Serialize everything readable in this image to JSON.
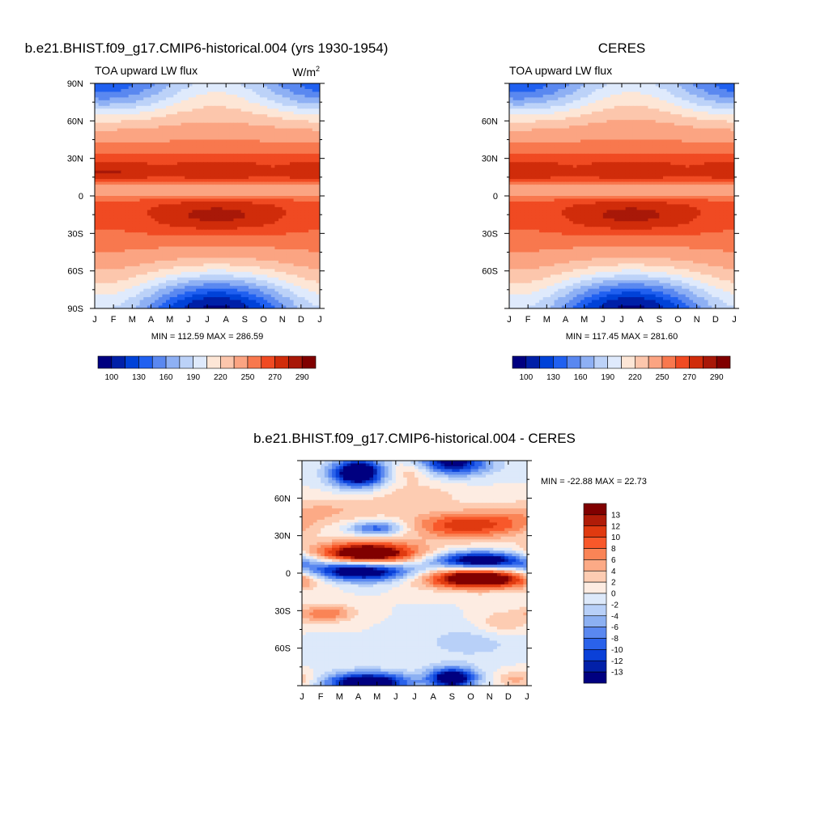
{
  "panels": [
    {
      "title": "b.e21.BHIST.f09_g17.CMIP6-historical.004 (yrs 1930-1954)",
      "left_label": "TOA upward LW flux",
      "right_label": "W/m",
      "right_label_sup": "2",
      "stats": "MIN = 112.59 MAX = 286.59"
    },
    {
      "title": "CERES",
      "left_label": "TOA upward LW flux",
      "right_label": "",
      "stats": "MIN = 117.45 MAX = 281.60"
    },
    {
      "title": "b.e21.BHIST.f09_g17.CMIP6-historical.004 - CERES",
      "stats": "MIN = -22.88 MAX =  22.73"
    }
  ],
  "abs_colorbar": {
    "colors": [
      "#000080",
      "#0020a8",
      "#0042d8",
      "#2060f0",
      "#5a88f0",
      "#8eb0f4",
      "#bcd2f8",
      "#dfeafc",
      "#fde6d6",
      "#fcc6ac",
      "#fba482",
      "#f8784e",
      "#f04a22",
      "#d02c0a",
      "#a81808",
      "#800000"
    ],
    "labels": [
      "100",
      "130",
      "160",
      "190",
      "220",
      "250",
      "270",
      "290"
    ]
  },
  "diff_colorbar": {
    "colors": [
      "#800000",
      "#b01c08",
      "#e03a10",
      "#f8582a",
      "#fa8456",
      "#fcaa86",
      "#fdccb2",
      "#fdece2",
      "#dde9fa",
      "#b8d0f8",
      "#8cb0f2",
      "#5a88f0",
      "#2a62ea",
      "#0a40d8",
      "#0220a8",
      "#000080"
    ],
    "labels": [
      "13",
      "12",
      "10",
      "8",
      "6",
      "4",
      "2",
      "0",
      "-2",
      "-4",
      "-6",
      "-8",
      "-10",
      "-12",
      "-13"
    ]
  },
  "chart_data": [
    {
      "type": "heatmap",
      "title": "b.e21.BHIST.f09_g17.CMIP6-historical.004 (yrs 1930-1954)",
      "subtitle_left": "TOA upward LW flux",
      "units": "W/m2",
      "x": [
        "J",
        "F",
        "M",
        "A",
        "M",
        "J",
        "J",
        "A",
        "S",
        "O",
        "N",
        "D",
        "J"
      ],
      "y_ticks": [
        "90N",
        "60N",
        "30N",
        "0",
        "30S",
        "60S",
        "90S"
      ],
      "ylim": [
        -90,
        90
      ],
      "min": 112.59,
      "max": 286.59,
      "levels": [
        100,
        115,
        130,
        145,
        160,
        175,
        190,
        205,
        220,
        235,
        250,
        260,
        270,
        280,
        290
      ]
    },
    {
      "type": "heatmap",
      "title": "CERES",
      "subtitle_left": "TOA upward LW flux",
      "x": [
        "J",
        "F",
        "M",
        "A",
        "M",
        "J",
        "J",
        "A",
        "S",
        "O",
        "N",
        "D",
        "J"
      ],
      "y_ticks": [
        "60N",
        "30N",
        "0",
        "30S",
        "60S"
      ],
      "ylim": [
        -90,
        90
      ],
      "min": 117.45,
      "max": 281.6,
      "levels": [
        100,
        115,
        130,
        145,
        160,
        175,
        190,
        205,
        220,
        235,
        250,
        260,
        270,
        280,
        290
      ]
    },
    {
      "type": "heatmap",
      "title": "b.e21.BHIST.f09_g17.CMIP6-historical.004 - CERES",
      "x": [
        "J",
        "F",
        "M",
        "A",
        "M",
        "J",
        "J",
        "A",
        "S",
        "O",
        "N",
        "D",
        "J"
      ],
      "y_ticks": [
        "60N",
        "30N",
        "0",
        "30S",
        "60S"
      ],
      "ylim": [
        -90,
        90
      ],
      "min": -22.88,
      "max": 22.73,
      "levels": [
        -13,
        -12,
        -10,
        -8,
        -6,
        -4,
        -2,
        0,
        2,
        4,
        6,
        8,
        10,
        12,
        13
      ]
    }
  ]
}
